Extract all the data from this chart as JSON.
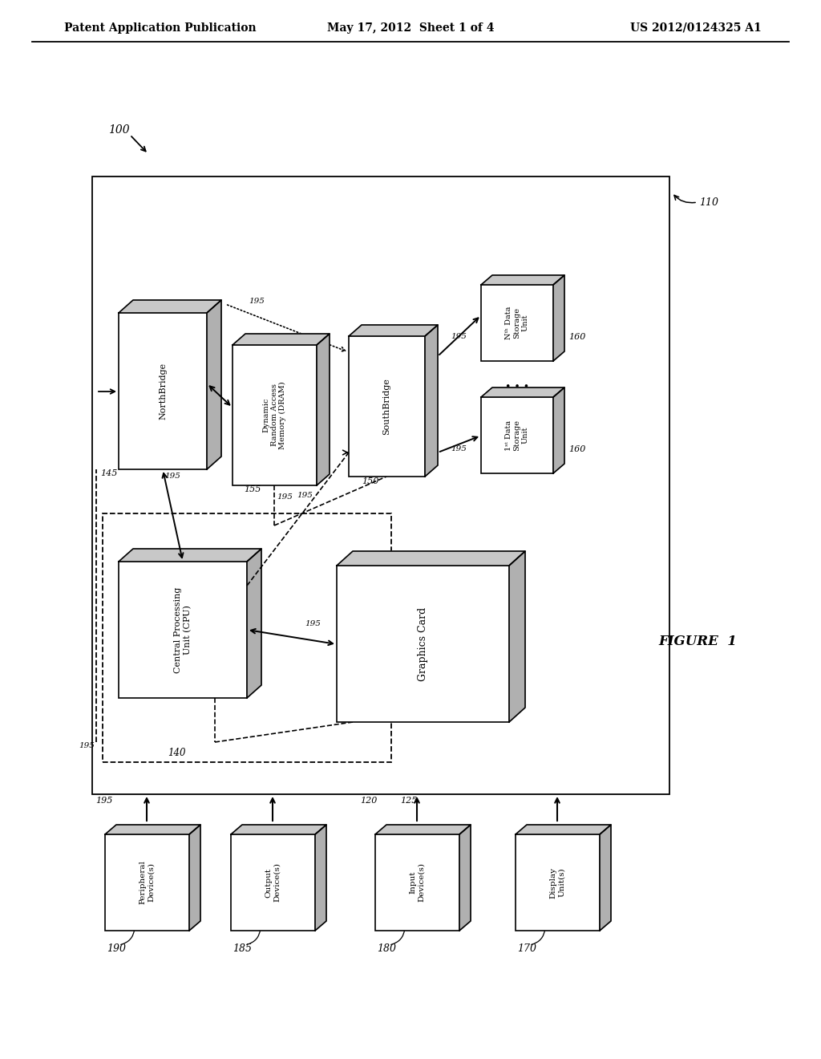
{
  "bg_color": "#ffffff",
  "header_left": "Patent Application Publication",
  "header_mid": "May 17, 2012  Sheet 1 of 4",
  "header_right": "US 2012/0124325 A1",
  "figure_label": "FIGURE  1"
}
